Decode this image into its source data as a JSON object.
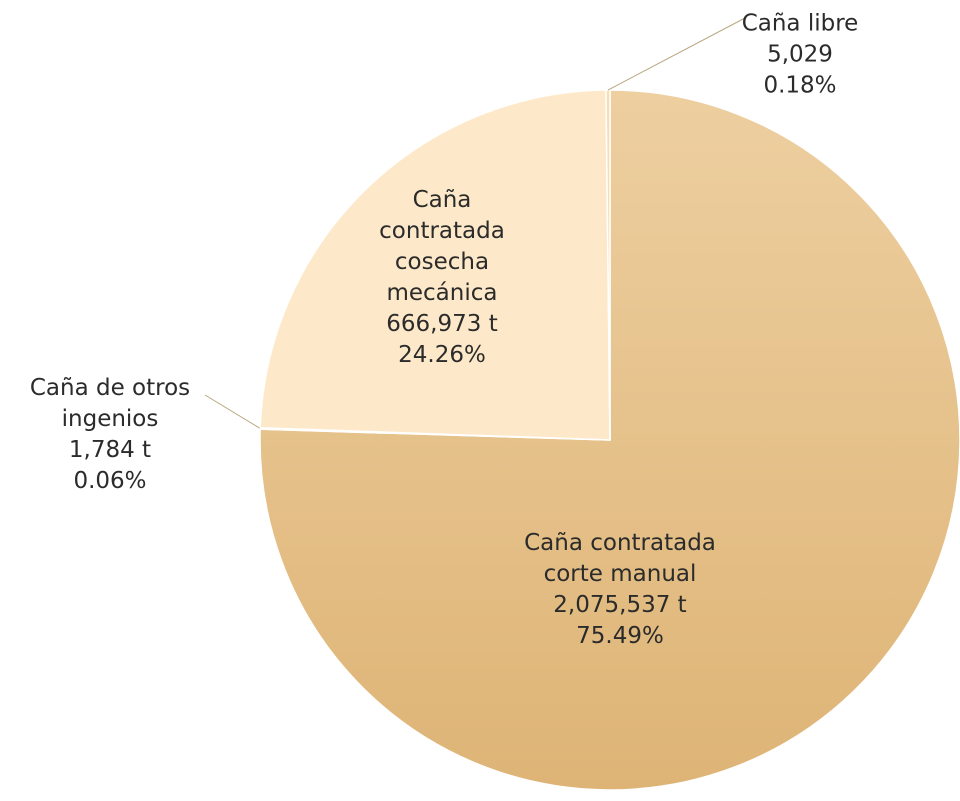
{
  "chart_data": {
    "type": "pie",
    "categories": [
      "Caña contratada corte manual",
      "Caña de otros ingenios",
      "Caña contratada cosecha mecánica",
      "Caña libre"
    ],
    "values": [
      2075537,
      1784,
      666973,
      5029
    ],
    "value_labels": [
      "2,075,537 t",
      "1,784 t",
      "666,973 t",
      "5,029"
    ],
    "percentages": [
      75.49,
      0.06,
      24.26,
      0.18
    ],
    "percentage_labels": [
      "75.49%",
      "0.06%",
      "24.26%",
      "0.18%"
    ],
    "colors": [
      "#e4ba82",
      "#f3d7ab",
      "#fde9c9",
      "#f6ddb4"
    ]
  }
}
